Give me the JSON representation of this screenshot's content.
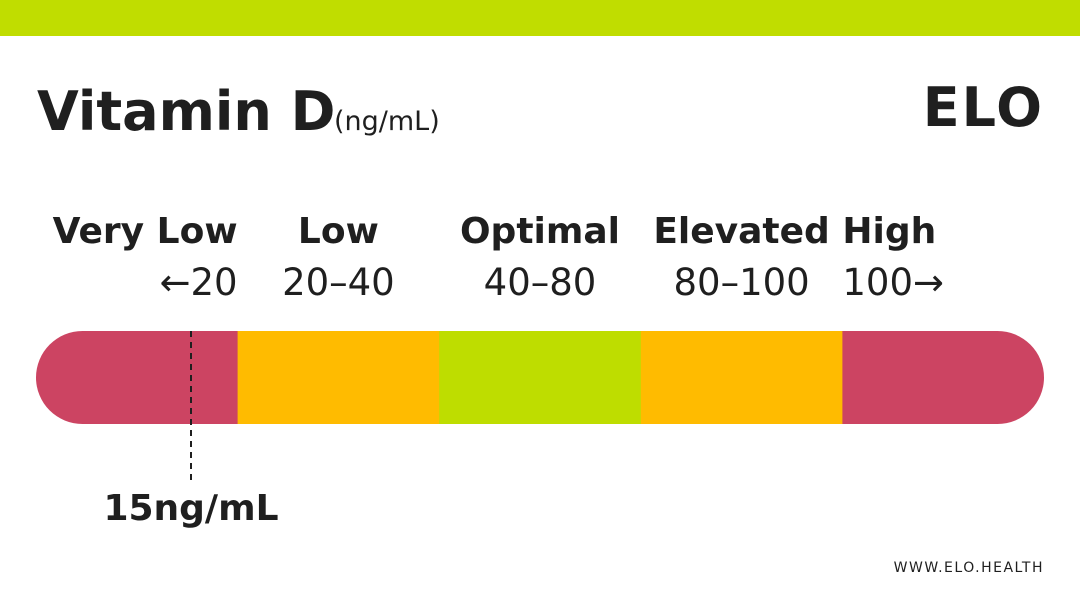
{
  "header": {
    "title": "Vitamin D",
    "unit": "(ng/mL)",
    "logo": "ELO"
  },
  "scale": {
    "segments": [
      {
        "label": "Very Low",
        "range": "←20",
        "color": "#cc4462"
      },
      {
        "label": "Low",
        "range": "20–40",
        "color": "#ffbb00"
      },
      {
        "label": "Optimal",
        "range": "40–80",
        "color": "#bedd00"
      },
      {
        "label": "Elevated",
        "range": "80–100",
        "color": "#ffbb00"
      },
      {
        "label": "High",
        "range": "100→",
        "color": "#cc4462"
      }
    ],
    "marker": "15ng/mL"
  },
  "footer": "WWW.ELO.HEALTH"
}
